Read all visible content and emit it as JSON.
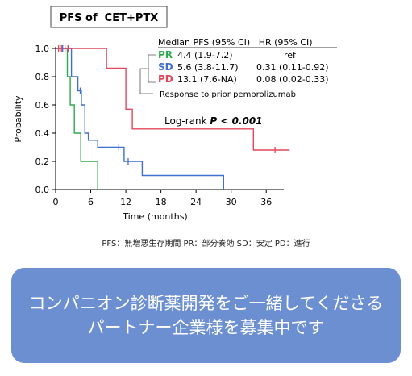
{
  "chart_data": {
    "type": "line",
    "title": "PFS of  CET+PTX",
    "ylabel": "Probability",
    "xlabel": "Time (months)",
    "xlim": [
      0,
      39
    ],
    "ylim": [
      0,
      1.0
    ],
    "xticks": [
      0,
      6,
      12,
      18,
      24,
      30,
      36
    ],
    "yticks": [
      0.0,
      0.2,
      0.4,
      0.6,
      0.8,
      1.0
    ],
    "legend_header": "Median PFS (95% CI)   HR (95% CI)",
    "legend_note": "Response to prior pembrolizumab",
    "annotation_prefix": "Log-rank ",
    "annotation_p": "P < 0.001",
    "series": [
      {
        "name": "PR",
        "median": "4.4 (1.9-7.2)",
        "hr": "ref",
        "color": "#2fa84f",
        "steps": [
          [
            0,
            1.0
          ],
          [
            2.0,
            1.0
          ],
          [
            2.0,
            0.8
          ],
          [
            2.5,
            0.8
          ],
          [
            2.5,
            0.6
          ],
          [
            3.2,
            0.6
          ],
          [
            3.2,
            0.4
          ],
          [
            4.3,
            0.4
          ],
          [
            4.3,
            0.2
          ],
          [
            7.2,
            0.2
          ],
          [
            7.2,
            0.0
          ]
        ],
        "censor": []
      },
      {
        "name": "SD",
        "median": "5.6 (3.8-11.7)",
        "hr": "0.31 (0.11-0.92)",
        "color": "#3f6fd0",
        "steps": [
          [
            0,
            1.0
          ],
          [
            2.7,
            1.0
          ],
          [
            2.7,
            0.8
          ],
          [
            3.8,
            0.8
          ],
          [
            3.8,
            0.7
          ],
          [
            4.4,
            0.7
          ],
          [
            4.4,
            0.6
          ],
          [
            5.0,
            0.6
          ],
          [
            5.0,
            0.4
          ],
          [
            5.6,
            0.4
          ],
          [
            5.6,
            0.35
          ],
          [
            7.2,
            0.35
          ],
          [
            7.2,
            0.3
          ],
          [
            11.7,
            0.3
          ],
          [
            11.7,
            0.2
          ],
          [
            14.8,
            0.2
          ],
          [
            14.8,
            0.1
          ],
          [
            28.7,
            0.1
          ],
          [
            28.7,
            0.0
          ]
        ],
        "censor": [
          1.2,
          2.2,
          4.2,
          10.8,
          12.4
        ]
      },
      {
        "name": "PD",
        "median": "13.1 (7.6-NA)",
        "hr": "0.08 (0.02-0.33)",
        "color": "#e0475c",
        "steps": [
          [
            0,
            1.0
          ],
          [
            8.7,
            1.0
          ],
          [
            8.7,
            0.86
          ],
          [
            12.0,
            0.86
          ],
          [
            12.0,
            0.57
          ],
          [
            13.1,
            0.57
          ],
          [
            13.1,
            0.43
          ],
          [
            33.8,
            0.43
          ],
          [
            33.8,
            0.28
          ],
          [
            40.0,
            0.28
          ]
        ],
        "censor": [
          0.5,
          1.0,
          1.6,
          2.1,
          37.5
        ]
      }
    ]
  },
  "footnote": "PFS：無増悪生存期間  PR：部分奏効  SD：安定  PD：進行",
  "banner": {
    "line1": "コンパニオン診断薬開発をご一緒してくださる",
    "line2": "パートナー企業様を募集中です",
    "color": "#6b8fd0"
  }
}
